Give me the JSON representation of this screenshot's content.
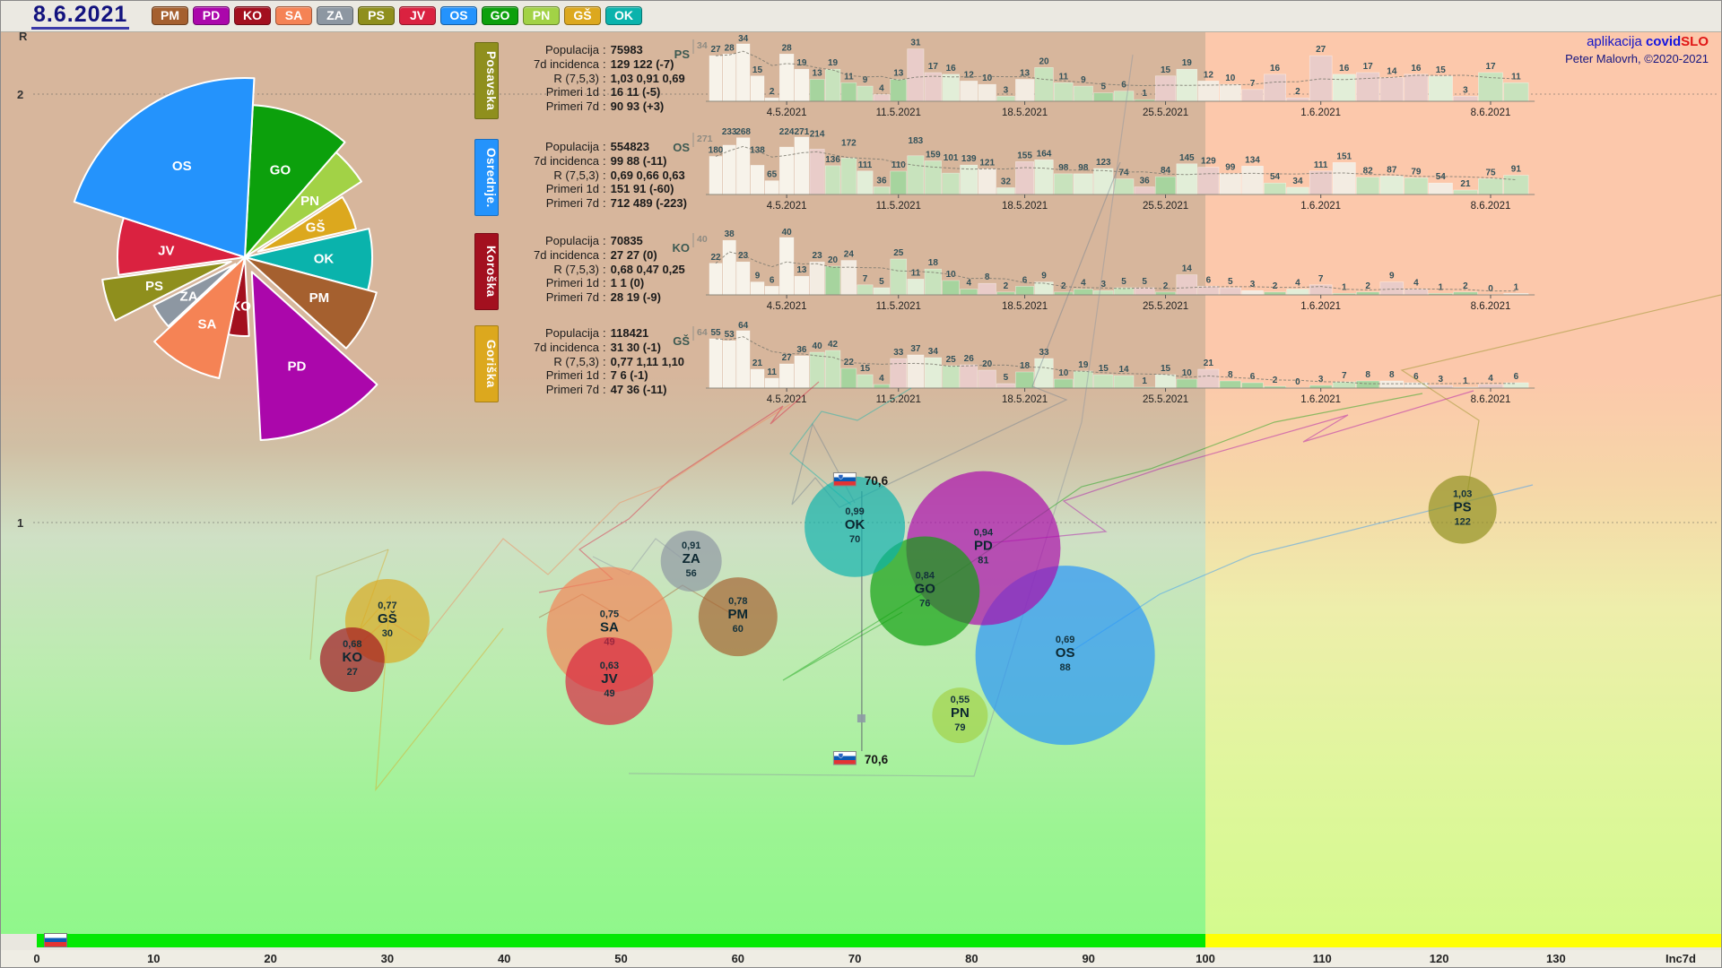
{
  "header": {
    "date": "8.6.2021",
    "legend": [
      {
        "code": "PM",
        "color": "#a5602f"
      },
      {
        "code": "PD",
        "color": "#ab07ab"
      },
      {
        "code": "KO",
        "color": "#a3101f"
      },
      {
        "code": "SA",
        "color": "#f58355"
      },
      {
        "code": "ZA",
        "color": "#8d97a2"
      },
      {
        "code": "PS",
        "color": "#8f8f1d"
      },
      {
        "code": "JV",
        "color": "#da2240"
      },
      {
        "code": "OS",
        "color": "#2493fc"
      },
      {
        "code": "GO",
        "color": "#0ca00c"
      },
      {
        "code": "PN",
        "color": "#a2d246"
      },
      {
        "code": "GŠ",
        "color": "#dca81e"
      },
      {
        "code": "OK",
        "color": "#0ab3ac"
      }
    ]
  },
  "branding": {
    "app_prefix": "aplikacija",
    "app_covid": "covid",
    "app_slo": "SLO",
    "credit": "Peter Malovrh, ©2020-2021"
  },
  "panels": [
    {
      "title": "Posavska",
      "color": "#8f8f1d",
      "rows": [
        [
          "Populacija",
          "75983"
        ],
        [
          "7d incidenca",
          "129 122 (-7)"
        ],
        [
          "R (7,5,3)",
          "1,03 0,91 0,69"
        ],
        [
          "Primeri 1d",
          "16 11 (-5)"
        ],
        [
          "Primeri 7d",
          "90 93 (+3)"
        ]
      ]
    },
    {
      "title": "Osrednje.",
      "color": "#2493fc",
      "rows": [
        [
          "Populacija",
          "554823"
        ],
        [
          "7d incidenca",
          "99 88 (-11)"
        ],
        [
          "R (7,5,3)",
          "0,69 0,66 0,63"
        ],
        [
          "Primeri 1d",
          "151 91 (-60)"
        ],
        [
          "Primeri 7d",
          "712 489 (-223)"
        ]
      ]
    },
    {
      "title": "Koroška",
      "color": "#a3101f",
      "rows": [
        [
          "Populacija",
          "70835"
        ],
        [
          "7d incidenca",
          "27 27 (0)"
        ],
        [
          "R (7,5,3)",
          "0,68 0,47 0,25"
        ],
        [
          "Primeri 1d",
          "1 1 (0)"
        ],
        [
          "Primeri 7d",
          "28 19 (-9)"
        ]
      ]
    },
    {
      "title": "Goriška",
      "color": "#dca81e",
      "rows": [
        [
          "Populacija",
          "118421"
        ],
        [
          "7d incidenca",
          "31 30 (-1)"
        ],
        [
          "R (7,5,3)",
          "0,77 1,11 1,10"
        ],
        [
          "Primeri 1d",
          "7 6 (-1)"
        ],
        [
          "Primeri 7d",
          "47 36 (-11)"
        ]
      ]
    }
  ],
  "chart_data": {
    "bubble_chart": {
      "type": "scatter",
      "x_axis": {
        "label": "Inc7d",
        "ticks": [
          0,
          10,
          20,
          30,
          40,
          50,
          60,
          70,
          80,
          90,
          100,
          110,
          120,
          130
        ],
        "green_zone_max": 100
      },
      "y_axis": {
        "label": "R",
        "ticks": [
          "2",
          "1"
        ]
      },
      "slovenia": {
        "inc7d_label": "70,6",
        "inc7d": 70.6
      },
      "points": [
        {
          "code": "PS",
          "r_label": "1,03",
          "r": 1.03,
          "inc7d": 122,
          "color": "#8f8f1d",
          "radius_px": 38
        },
        {
          "code": "OK",
          "r_label": "0,99",
          "r": 0.99,
          "inc7d": 70,
          "color": "#0ab3ac",
          "radius_px": 56
        },
        {
          "code": "PD",
          "r_label": "0,94",
          "r": 0.94,
          "inc7d": 81,
          "color": "#ab07ab",
          "radius_px": 86
        },
        {
          "code": "ZA",
          "r_label": "0,91",
          "r": 0.91,
          "inc7d": 56,
          "color": "#8d97a2",
          "radius_px": 34
        },
        {
          "code": "GO",
          "r_label": "0,84",
          "r": 0.84,
          "inc7d": 76,
          "color": "#0ca00c",
          "radius_px": 61
        },
        {
          "code": "PM",
          "r_label": "0,78",
          "r": 0.78,
          "inc7d": 60,
          "color": "#a5602f",
          "radius_px": 44
        },
        {
          "code": "GŠ",
          "r_label": "0,77",
          "r": 0.77,
          "inc7d": 30,
          "color": "#dca81e",
          "radius_px": 47
        },
        {
          "code": "SA",
          "r_label": "0,75",
          "r": 0.75,
          "inc7d": 49,
          "color": "#f58355",
          "radius_px": 70
        },
        {
          "code": "OS",
          "r_label": "0,69",
          "r": 0.69,
          "inc7d": 88,
          "color": "#2493fc",
          "radius_px": 100
        },
        {
          "code": "KO",
          "r_label": "0,68",
          "r": 0.68,
          "inc7d": 27,
          "color": "#a3101f",
          "radius_px": 36
        },
        {
          "code": "JV",
          "r_label": "0,63",
          "r": 0.63,
          "inc7d": 49,
          "color": "#da2240",
          "radius_px": 49
        },
        {
          "code": "PN",
          "r_label": "0,55",
          "r": 0.55,
          "inc7d": 79,
          "color": "#a2d246",
          "radius_px": 31
        }
      ]
    },
    "mini_charts": [
      {
        "region_code": "PS",
        "type": "bar",
        "axis_max": 34,
        "date_ticks": [
          "4.5.2021",
          "11.5.2021",
          "18.5.2021",
          "25.5.2021",
          "1.6.2021",
          "8.6.2021"
        ],
        "tick_indices": [
          5,
          12,
          19,
          26,
          33,
          40
        ],
        "values": [
          27,
          28,
          34,
          15,
          2,
          28,
          19,
          13,
          19,
          11,
          9,
          4,
          13,
          31,
          17,
          16,
          12,
          10,
          3,
          13,
          20,
          11,
          9,
          5,
          6,
          1,
          15,
          19,
          12,
          10,
          7,
          16,
          2,
          27,
          16,
          17,
          14,
          16,
          15,
          3,
          17,
          11
        ]
      },
      {
        "region_code": "OS",
        "type": "bar",
        "axis_max": 271,
        "date_ticks": [
          "4.5.2021",
          "11.5.2021",
          "18.5.2021",
          "25.5.2021",
          "1.6.2021",
          "8.6.2021"
        ],
        "tick_indices": [
          5,
          12,
          19,
          26,
          33,
          40
        ],
        "values": [
          180,
          233,
          268,
          138,
          65,
          224,
          271,
          214,
          136,
          172,
          111,
          36,
          110,
          183,
          159,
          101,
          139,
          121,
          32,
          155,
          164,
          98,
          98,
          123,
          74,
          36,
          84,
          145,
          129,
          99,
          134,
          54,
          34,
          111,
          151,
          82,
          87,
          79,
          54,
          21,
          75,
          91
        ]
      },
      {
        "region_code": "KO",
        "type": "bar",
        "axis_max": 40,
        "date_ticks": [
          "4.5.2021",
          "11.5.2021",
          "18.5.2021",
          "25.5.2021",
          "1.6.2021",
          "8.6.2021"
        ],
        "tick_indices": [
          5,
          12,
          19,
          26,
          33,
          40
        ],
        "values": [
          22,
          38,
          23,
          9,
          6,
          40,
          13,
          23,
          20,
          24,
          7,
          5,
          25,
          11,
          18,
          10,
          4,
          8,
          2,
          6,
          9,
          2,
          4,
          3,
          5,
          5,
          2,
          14,
          6,
          5,
          3,
          2,
          4,
          7,
          1,
          2,
          9,
          4,
          1,
          2,
          0,
          1
        ]
      },
      {
        "region_code": "GŠ",
        "type": "bar",
        "axis_max": 64,
        "date_ticks": [
          "4.5.2021",
          "11.5.2021",
          "18.5.2021",
          "25.5.2021",
          "1.6.2021",
          "8.6.2021"
        ],
        "tick_indices": [
          5,
          12,
          19,
          26,
          33,
          40
        ],
        "values": [
          55,
          53,
          64,
          21,
          11,
          27,
          36,
          40,
          42,
          22,
          15,
          4,
          33,
          37,
          34,
          25,
          26,
          20,
          5,
          18,
          33,
          10,
          19,
          15,
          14,
          1,
          15,
          10,
          21,
          8,
          6,
          2,
          0,
          3,
          7,
          8,
          8,
          6,
          3,
          1,
          4,
          6
        ]
      }
    ],
    "pie": {
      "type": "pie",
      "segments": [
        {
          "code": "GO",
          "color": "#0ca00c",
          "start_deg": 3,
          "end_deg": 41,
          "radius": 170,
          "explode": 0
        },
        {
          "code": "PN",
          "color": "#a2d246",
          "start_deg": 41,
          "end_deg": 57,
          "radius": 155,
          "explode": 0
        },
        {
          "code": "GŠ",
          "color": "#dca81e",
          "start_deg": 57,
          "end_deg": 77,
          "radius": 112,
          "explode": 16
        },
        {
          "code": "OK",
          "color": "#0ab3ac",
          "start_deg": 77,
          "end_deg": 105,
          "radius": 142,
          "explode": 0
        },
        {
          "code": "PM",
          "color": "#a5602f",
          "start_deg": 105,
          "end_deg": 132,
          "radius": 152,
          "explode": 0
        },
        {
          "code": "PD",
          "color": "#ab07ab",
          "start_deg": 132,
          "end_deg": 177,
          "radius": 188,
          "explode": 18
        },
        {
          "code": "KO",
          "color": "#a3101f",
          "start_deg": 177,
          "end_deg": 192,
          "radius": 88,
          "explode": 0
        },
        {
          "code": "SA",
          "color": "#f58355",
          "start_deg": 192,
          "end_deg": 227,
          "radius": 138,
          "explode": 0
        },
        {
          "code": "ZA",
          "color": "#8d97a2",
          "start_deg": 227,
          "end_deg": 243,
          "radius": 102,
          "explode": 13
        },
        {
          "code": "PS",
          "color": "#8f8f1d",
          "start_deg": 243,
          "end_deg": 262,
          "radius": 145,
          "explode": 16
        },
        {
          "code": "JV",
          "color": "#da2240",
          "start_deg": 262,
          "end_deg": 288,
          "radius": 142,
          "explode": 0
        },
        {
          "code": "OS",
          "color": "#2493fc",
          "start_deg": 288,
          "end_deg": 363,
          "radius": 200,
          "explode": 0
        }
      ]
    }
  }
}
